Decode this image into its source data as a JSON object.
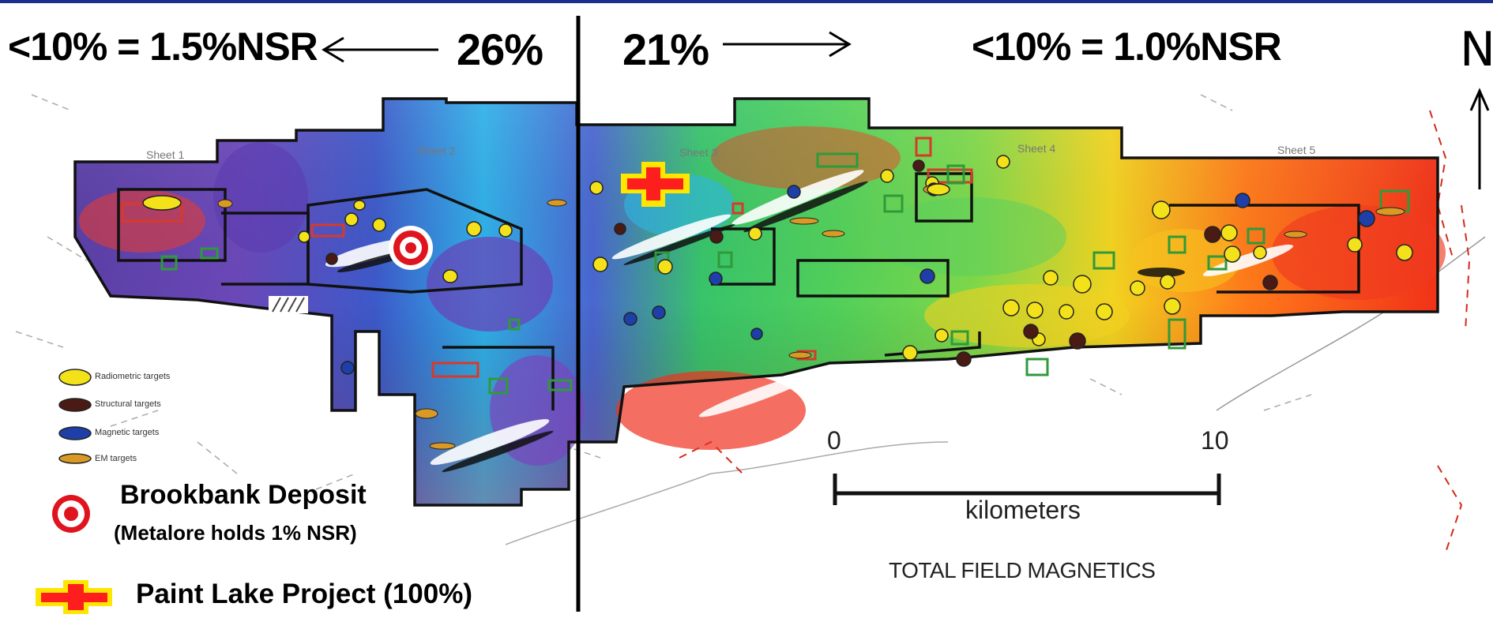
{
  "header": {
    "left_ratio": "<10% = 1.5%NSR",
    "left_percent": "26%",
    "right_percent": "21%",
    "right_ratio": "<10% = 1.0%NSR",
    "north_label": "N"
  },
  "sheets": [
    "Sheet 1",
    "Sheet 2",
    "Sheet 3",
    "Sheet 4",
    "Sheet 5"
  ],
  "target_legend": {
    "radiometric": "Radiometric targets",
    "structural": "Structural targets",
    "magnetic": "Magnetic targets",
    "em": "EM targets"
  },
  "legend": {
    "deposit_title": "Brookbank Deposit",
    "deposit_note": "(Metalore holds 1% NSR)",
    "project_label": "Paint Lake Project (100%)"
  },
  "scale": {
    "start": "0",
    "end": "10",
    "unit": "kilometers",
    "caption": "TOTAL FIELD MAGNETICS"
  },
  "colors": {
    "header_bar": "#1c2f8c",
    "project_fill": "#ff1e1e",
    "project_outline": "#ffe600",
    "deposit_ring": "#e0141e",
    "radiometric": "#f3e21a",
    "structural": "#4a1a14",
    "magnetic": "#1e3fa8",
    "em": "#d99a25"
  },
  "icons": [
    "north-arrow-icon",
    "deposit-target-icon",
    "project-marker-icon"
  ]
}
